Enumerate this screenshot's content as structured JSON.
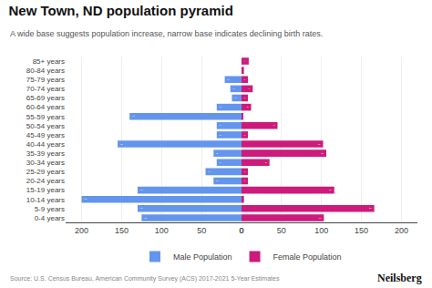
{
  "chart_data": {
    "type": "bar",
    "orientation": "horizontal",
    "title": "New Town, ND population pyramid",
    "subtitle": "A wide base suggests population increase, narrow base indicates declining birth rates.",
    "annotations": [
      "Source: U.S. Census Bureau, American Community Survey (ACS) 2017-2021 5-Year Estimates",
      "Neilsberg"
    ],
    "categories": [
      "0-4 years",
      "5-9 years",
      "10-14 years",
      "15-19 years",
      "20-24 years",
      "25-29 years",
      "30-34 years",
      "35-39 years",
      "40-44 years",
      "45-49 years",
      "50-54 years",
      "55-59 years",
      "60-64 years",
      "65-69 years",
      "70-74 years",
      "75-79 years",
      "80-84 years",
      "85+ years"
    ],
    "series": [
      {
        "name": "Male Population",
        "color": "#6495ED",
        "values": [
          125,
          130,
          200,
          130,
          35,
          45,
          31,
          35,
          155,
          31,
          31,
          140,
          31,
          12,
          14,
          21,
          0,
          0
        ],
        "value_labels": [
          "125",
          "130",
          "200",
          "130",
          "35",
          "45",
          "31",
          "35",
          "155",
          "31",
          "31",
          "140",
          "31",
          "12",
          "14",
          "21",
          null,
          null
        ]
      },
      {
        "name": "Female Population",
        "color": "#CC1B7A",
        "values": [
          103,
          166,
          3,
          116,
          8,
          8,
          35,
          106,
          102,
          8,
          45,
          2,
          12,
          8,
          14,
          8,
          3,
          9
        ],
        "value_labels": [
          "103",
          "166",
          null,
          "116",
          "8",
          "8",
          "35",
          "106",
          "102",
          "8",
          "45",
          null,
          "12",
          "8",
          "14",
          "8",
          null,
          "9"
        ]
      }
    ],
    "xlim": [
      0,
      220
    ],
    "xticks": [
      0,
      50,
      100,
      150,
      200
    ],
    "grid": true,
    "legend": "bottom",
    "data_labels": true
  }
}
